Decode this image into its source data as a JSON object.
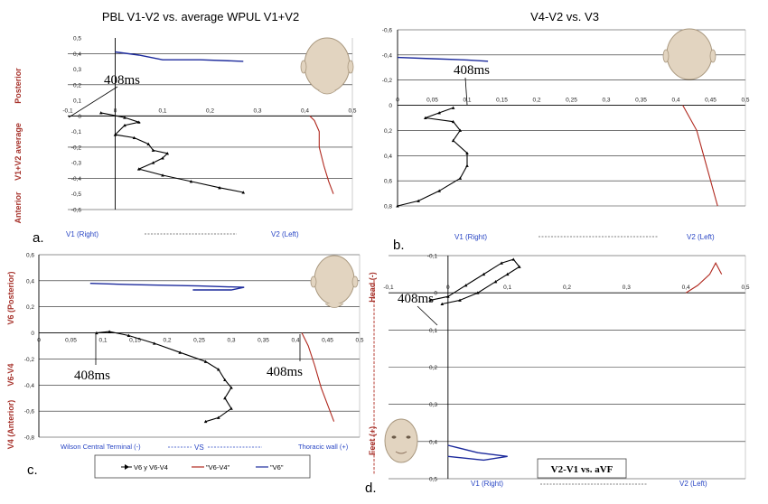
{
  "chart_data": [
    {
      "type": "line",
      "panel_letter": "a.",
      "title": "PBL V1-V2 vs. average WPUL V1+V2",
      "ylabel_parts": [
        "Posterior",
        "V1+V2 average",
        "Anterior"
      ],
      "xlabel_left": "V1 (Right)",
      "xlabel_right": "V2 (Left)",
      "marker_label": "408ms",
      "xlim": [
        -0.1,
        0.5
      ],
      "ylim": [
        -0.6,
        0.5
      ],
      "x_ticks": [
        "-0,1",
        "0",
        "0,1",
        "0,2",
        "0,3",
        "0,4",
        "0,5"
      ],
      "y_ticks": [
        "-0,6",
        "-0,5",
        "-0,4",
        "-0,3",
        "-0,2",
        "-0,1",
        "0",
        "0,1",
        "0,2",
        "0,3",
        "0,4",
        "0,5"
      ],
      "series": [
        {
          "color": "#000000",
          "points": [
            [
              -0.03,
              0.02
            ],
            [
              0.02,
              -0.01
            ],
            [
              0.05,
              -0.04
            ],
            [
              0.02,
              -0.06
            ],
            [
              0.0,
              -0.12
            ],
            [
              0.04,
              -0.14
            ],
            [
              0.07,
              -0.18
            ],
            [
              0.08,
              -0.22
            ],
            [
              0.11,
              -0.24
            ],
            [
              0.1,
              -0.27
            ],
            [
              0.08,
              -0.3
            ],
            [
              0.05,
              -0.34
            ],
            [
              0.1,
              -0.38
            ],
            [
              0.16,
              -0.42
            ],
            [
              0.22,
              -0.46
            ],
            [
              0.27,
              -0.49
            ]
          ]
        },
        {
          "color": "#b0281e",
          "points": [
            [
              0.41,
              0.0
            ],
            [
              0.42,
              -0.03
            ],
            [
              0.43,
              -0.1
            ],
            [
              0.43,
              -0.2
            ],
            [
              0.44,
              -0.32
            ],
            [
              0.45,
              -0.42
            ],
            [
              0.46,
              -0.5
            ]
          ]
        },
        {
          "color": "#1c2a9c",
          "points": [
            [
              0.0,
              0.41
            ],
            [
              0.05,
              0.39
            ],
            [
              0.1,
              0.36
            ],
            [
              0.18,
              0.36
            ],
            [
              0.27,
              0.35
            ]
          ]
        }
      ]
    },
    {
      "type": "line",
      "panel_letter": "b.",
      "title": "V4-V2 vs. V3",
      "xlabel_left": "V1 (Right)",
      "xlabel_right": "V2 (Left)",
      "marker_label": "408ms",
      "xlim": [
        0,
        0.5
      ],
      "ylim": [
        -0.6,
        0.8
      ],
      "x_ticks": [
        "0",
        "0,05",
        "0,1",
        "0,15",
        "0,2",
        "0,25",
        "0,3",
        "0,35",
        "0,4",
        "0,45",
        "0,5"
      ],
      "y_ticks": [
        "-0,6",
        "-0,4",
        "-0,2",
        "0",
        "0,2",
        "0,4",
        "0,6",
        "0,8"
      ],
      "series": [
        {
          "color": "#000000",
          "points": [
            [
              0.08,
              0.02
            ],
            [
              0.06,
              0.06
            ],
            [
              0.04,
              0.1
            ],
            [
              0.08,
              0.13
            ],
            [
              0.09,
              0.2
            ],
            [
              0.08,
              0.28
            ],
            [
              0.1,
              0.38
            ],
            [
              0.1,
              0.48
            ],
            [
              0.09,
              0.58
            ],
            [
              0.06,
              0.68
            ],
            [
              0.03,
              0.76
            ],
            [
              0.0,
              0.8
            ]
          ]
        },
        {
          "color": "#b0281e",
          "points": [
            [
              0.41,
              0.0
            ],
            [
              0.42,
              0.1
            ],
            [
              0.43,
              0.2
            ],
            [
              0.44,
              0.4
            ],
            [
              0.45,
              0.6
            ],
            [
              0.46,
              0.8
            ]
          ]
        },
        {
          "color": "#1c2a9c",
          "points": [
            [
              0.0,
              -0.38
            ],
            [
              0.05,
              -0.37
            ],
            [
              0.1,
              -0.36
            ],
            [
              0.13,
              -0.35
            ]
          ]
        }
      ]
    },
    {
      "type": "line",
      "panel_letter": "c.",
      "ylabel_parts": [
        "V6 (Posterior)",
        "V6-V4",
        "V4 (Anterior)"
      ],
      "xlabel_left": "Wilson Central Terminal (-)",
      "xlabel_mid": "VS",
      "xlabel_right": "Thoracic wall (+)",
      "marker_label_left": "408ms",
      "marker_label_right": "408ms",
      "xlim": [
        0,
        0.5
      ],
      "ylim": [
        -0.8,
        0.6
      ],
      "x_ticks": [
        "0",
        "0,05",
        "0,1",
        "0,15",
        "0,2",
        "0,25",
        "0,3",
        "0,35",
        "0,4",
        "0,45",
        "0,5"
      ],
      "y_ticks": [
        "-0,8",
        "-0,6",
        "-0,4",
        "-0,2",
        "0",
        "0,2",
        "0,4",
        "0,6"
      ],
      "legend": [
        "V6 y V6-V4",
        "\"V6-V4\"",
        "\"V6\""
      ],
      "series": [
        {
          "color": "#000000",
          "points": [
            [
              0.09,
              0.0
            ],
            [
              0.11,
              0.01
            ],
            [
              0.14,
              -0.02
            ],
            [
              0.18,
              -0.08
            ],
            [
              0.22,
              -0.15
            ],
            [
              0.26,
              -0.22
            ],
            [
              0.28,
              -0.28
            ],
            [
              0.29,
              -0.36
            ],
            [
              0.3,
              -0.42
            ],
            [
              0.29,
              -0.5
            ],
            [
              0.3,
              -0.58
            ],
            [
              0.28,
              -0.65
            ],
            [
              0.26,
              -0.68
            ]
          ]
        },
        {
          "color": "#b0281e",
          "points": [
            [
              0.41,
              0.0
            ],
            [
              0.42,
              -0.1
            ],
            [
              0.43,
              -0.25
            ],
            [
              0.44,
              -0.42
            ],
            [
              0.45,
              -0.55
            ],
            [
              0.46,
              -0.68
            ]
          ]
        },
        {
          "color": "#1c2a9c",
          "points": [
            [
              0.08,
              0.38
            ],
            [
              0.15,
              0.37
            ],
            [
              0.25,
              0.36
            ],
            [
              0.32,
              0.35
            ],
            [
              0.3,
              0.33
            ],
            [
              0.24,
              0.33
            ]
          ]
        }
      ]
    },
    {
      "type": "line",
      "panel_letter": "d.",
      "ylabel_parts": [
        "Head (-)",
        "Feet (+)"
      ],
      "xlabel_left": "V1 (Right)",
      "xlabel_right": "V2 (Left)",
      "inset_label": "V2-V1 vs. aVF",
      "marker_label": "408ms",
      "xlim": [
        -0.1,
        0.5
      ],
      "ylim": [
        -0.1,
        0.5
      ],
      "x_ticks": [
        "-0,1",
        "0",
        "0,1",
        "0,2",
        "0,3",
        "0,4",
        "0,5"
      ],
      "y_ticks": [
        "-0,1",
        "0",
        "0,1",
        "0,2",
        "0,3",
        "0,4",
        "0,5"
      ],
      "series": [
        {
          "color": "#000000",
          "points": [
            [
              -0.03,
              0.02
            ],
            [
              0.0,
              0.01
            ],
            [
              0.03,
              -0.02
            ],
            [
              0.06,
              -0.05
            ],
            [
              0.09,
              -0.08
            ],
            [
              0.11,
              -0.09
            ],
            [
              0.12,
              -0.07
            ],
            [
              0.1,
              -0.05
            ],
            [
              0.08,
              -0.03
            ],
            [
              0.05,
              0.0
            ],
            [
              0.02,
              0.02
            ],
            [
              -0.01,
              0.03
            ]
          ]
        },
        {
          "color": "#b0281e",
          "points": [
            [
              0.4,
              0.0
            ],
            [
              0.42,
              -0.02
            ],
            [
              0.44,
              -0.05
            ],
            [
              0.45,
              -0.08
            ],
            [
              0.46,
              -0.05
            ]
          ]
        },
        {
          "color": "#1c2a9c",
          "points": [
            [
              0.0,
              0.41
            ],
            [
              0.05,
              0.43
            ],
            [
              0.1,
              0.44
            ],
            [
              0.06,
              0.45
            ],
            [
              0.0,
              0.44
            ]
          ]
        }
      ]
    }
  ]
}
